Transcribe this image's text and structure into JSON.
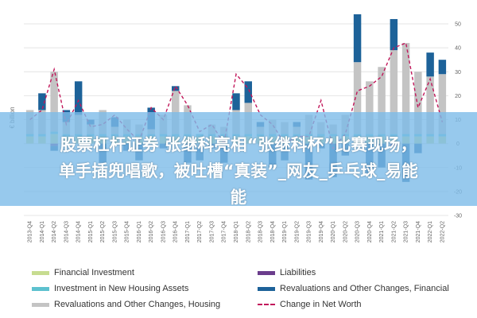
{
  "chart_data": {
    "type": "bar",
    "stacked": true,
    "ylabel": "€ billion",
    "ylim": [
      -30,
      50
    ],
    "yticks": [
      50,
      40,
      30,
      20,
      10,
      0,
      -10,
      -20,
      -30
    ],
    "categories": [
      "2013-Q4",
      "2014-Q1",
      "2014-Q2",
      "2014-Q3",
      "2014-Q4",
      "2015-Q1",
      "2015-Q2",
      "2015-Q3",
      "2015-Q4",
      "2016-Q1",
      "2016-Q2",
      "2016-Q3",
      "2016-Q4",
      "2017-Q1",
      "2017-Q2",
      "2017-Q3",
      "2017-Q4",
      "2018-Q1",
      "2018-Q2",
      "2018-Q3",
      "2018-Q4",
      "2019-Q1",
      "2019-Q2",
      "2019-Q3",
      "2019-Q4",
      "2020-Q1",
      "2020-Q2",
      "2020-Q3",
      "2020-Q4",
      "2021-Q1",
      "2021-Q2",
      "2021-Q3",
      "2021-Q4",
      "2022-Q1",
      "2022-Q2"
    ],
    "series": [
      {
        "name": "Financial Investment",
        "color": "#c7dc90",
        "values": [
          3,
          3,
          4,
          3,
          3,
          3,
          3,
          3,
          3,
          3,
          3,
          3,
          3,
          3,
          3,
          3,
          3,
          3,
          3,
          3,
          3,
          3,
          3,
          3,
          3,
          3,
          3,
          3,
          3,
          3,
          3,
          3,
          3,
          3,
          3
        ]
      },
      {
        "name": "Investment in New Housing Assets",
        "color": "#5dc1cf",
        "values": [
          1,
          1,
          1,
          1,
          1,
          1,
          1,
          1,
          1,
          1,
          1,
          1,
          1,
          1,
          1,
          1,
          1,
          1,
          1,
          1,
          1,
          1,
          1,
          1,
          1,
          1,
          1,
          1,
          1,
          1,
          1,
          1,
          1,
          1,
          1
        ]
      },
      {
        "name": "Revaluations and Other Changes, Housing",
        "color": "#c4c4c4",
        "values": [
          10,
          10,
          25,
          5,
          8,
          4,
          10,
          3,
          6,
          4,
          2,
          8,
          18,
          12,
          -2,
          4,
          3,
          10,
          13,
          3,
          6,
          5,
          3,
          8,
          5,
          4,
          8,
          30,
          22,
          28,
          35,
          38,
          26,
          24,
          25
        ]
      },
      {
        "name": "Liabilities",
        "color": "#6b3d8c",
        "values": [
          0,
          0,
          -1,
          0,
          0,
          0,
          0,
          0,
          0,
          0,
          0,
          0,
          0,
          0,
          0,
          0,
          0,
          0,
          0,
          0,
          0,
          0,
          0,
          0,
          0,
          0,
          0,
          0,
          0,
          0,
          -1,
          0,
          0,
          0,
          0
        ]
      },
      {
        "name": "Revaluations and Other Changes, Financial",
        "color": "#1d6299",
        "values": [
          0,
          7,
          -2,
          5,
          14,
          2,
          -8,
          4,
          -3,
          -7,
          9,
          -2,
          2,
          -8,
          -5,
          -2,
          -8,
          7,
          9,
          2,
          -10,
          -7,
          2,
          -15,
          -2,
          -14,
          -5,
          20,
          -13,
          -10,
          13,
          -16,
          -4,
          10,
          6
        ]
      }
    ],
    "net_worth": {
      "name": "Change in Net Worth",
      "color": "#c2185b",
      "values": [
        10,
        14,
        31,
        8,
        18,
        7,
        8,
        12,
        6,
        1,
        15,
        10,
        24,
        16,
        5,
        8,
        0,
        29,
        23,
        12,
        8,
        0,
        3,
        3,
        18,
        -2,
        4,
        22,
        24,
        28,
        40,
        42,
        15,
        27,
        9
      ]
    },
    "legend_position": "bottom"
  },
  "overlay": {
    "line1": "股票杠杆证券 张继科亮相“张继科杯”比赛现场，",
    "line2": "单手插兜唱歌，被吐槽“真装”_网友_乒乓球_易能",
    "line3": "能"
  }
}
